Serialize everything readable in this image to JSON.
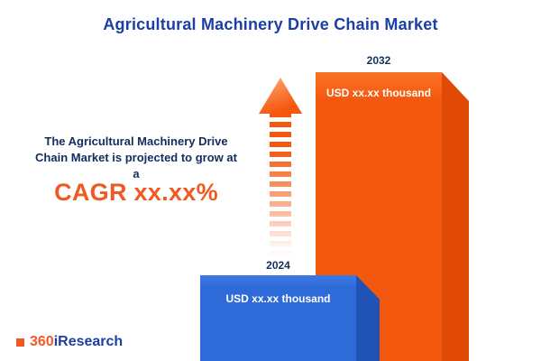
{
  "title": "Agricultural Machinery Drive Chain Market",
  "description": {
    "line1": "The Agricultural Machinery Drive",
    "line2": "Chain Market is projected to grow at",
    "line3": "a",
    "cagr": "CAGR xx.xx%"
  },
  "bars": {
    "y2024": {
      "year": "2024",
      "value_label": "USD xx.xx thousand"
    },
    "y2032": {
      "year": "2032",
      "value_label": "USD xx.xx thousand"
    }
  },
  "logo": {
    "prefix": "360",
    "suffix": "iResearch"
  },
  "colors": {
    "accent_orange": "#f4570e",
    "cagr_orange": "#f05a22",
    "bar_blue": "#2e6bd9",
    "title_blue": "#1b3fa5",
    "navy_text": "#122c5e"
  },
  "chart_data": {
    "type": "bar",
    "title": "Agricultural Machinery Drive Chain Market",
    "categories": [
      "2024",
      "2032"
    ],
    "values": [
      null,
      null
    ],
    "value_labels": [
      "USD xx.xx thousand",
      "USD xx.xx thousand"
    ],
    "unit": "USD thousand",
    "annotation": "CAGR xx.xx%",
    "series_colors": [
      "#2e6bd9",
      "#f4570e"
    ],
    "legend": false,
    "axes_visible": false,
    "note": "placeholder values shown as xx.xx in source image"
  }
}
